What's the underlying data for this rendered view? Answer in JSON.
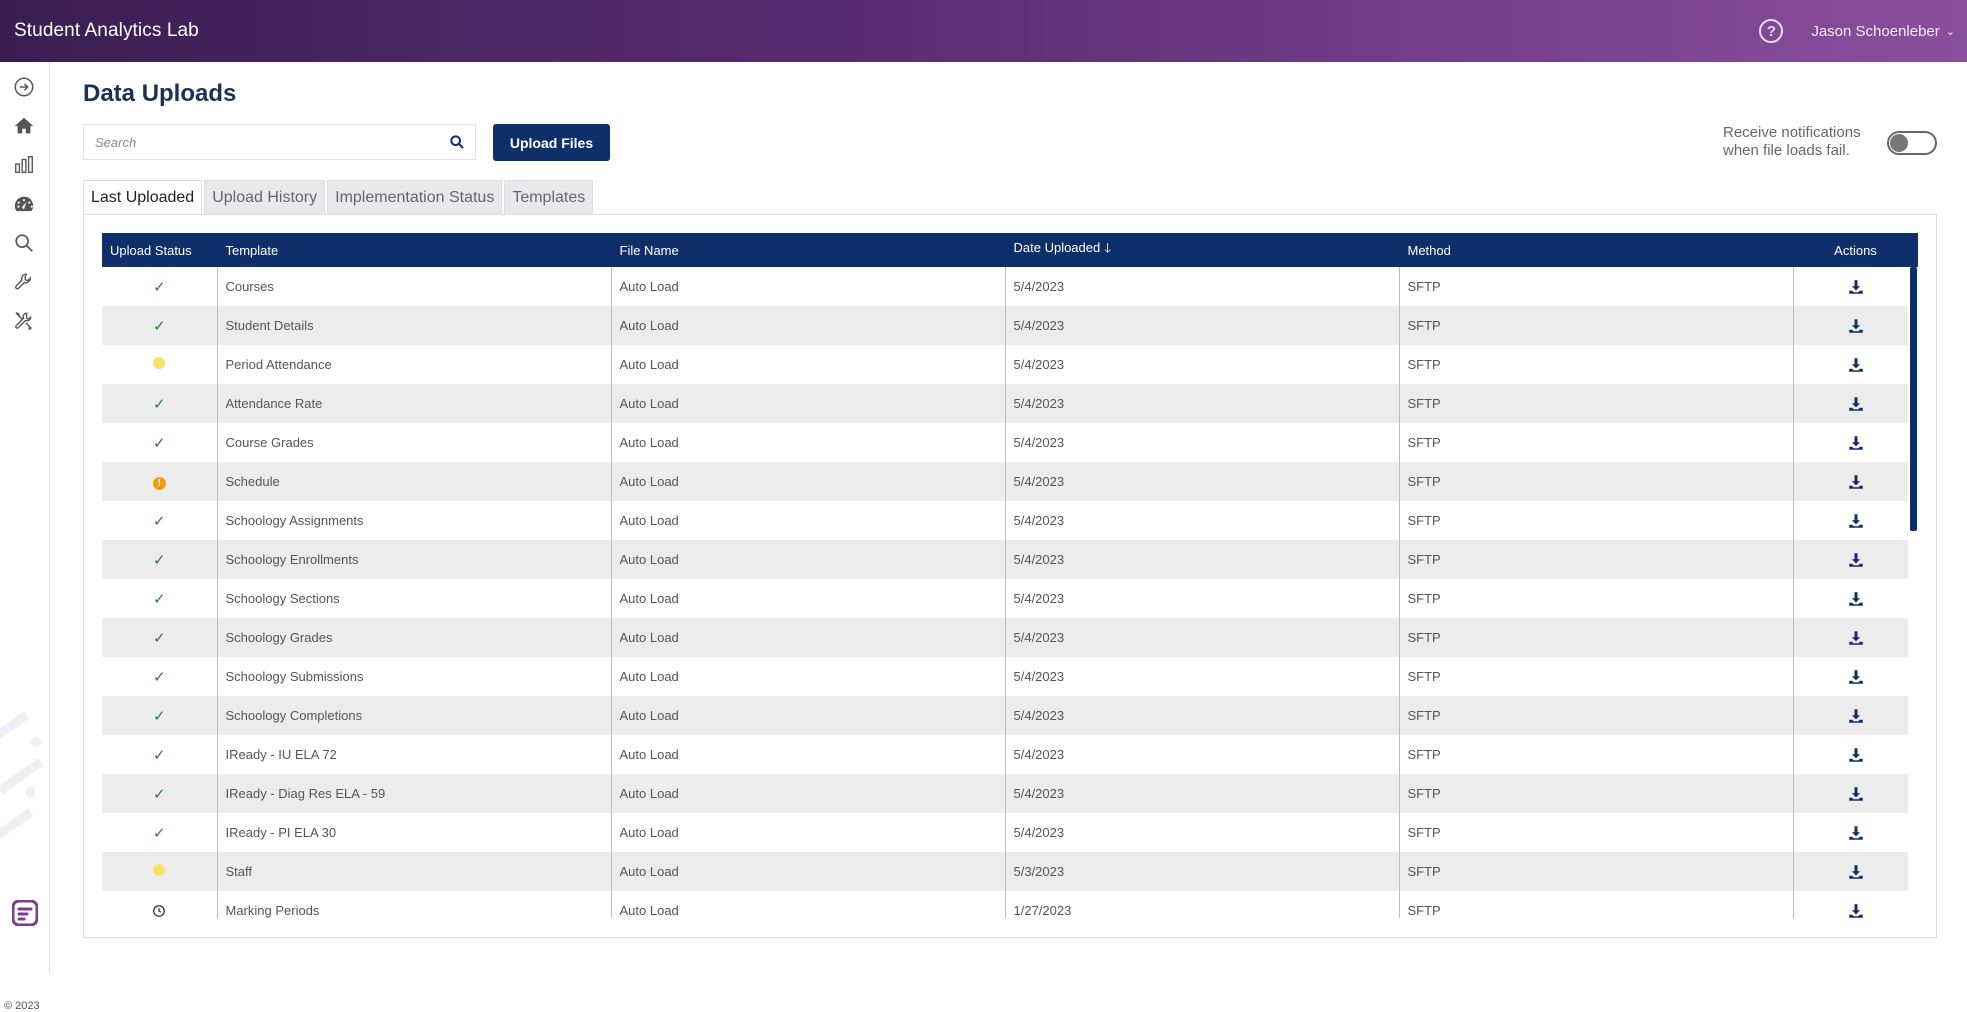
{
  "header": {
    "app_title": "Student Analytics Lab",
    "help_symbol": "?",
    "user_name": "Jason Schoenleber",
    "user_chevron": "⌄"
  },
  "sidebar": {
    "icons": [
      "arrow-right-circle-icon",
      "home-icon",
      "bar-chart-icon",
      "dashboard-gauge-icon",
      "search-icon",
      "wrench-icon",
      "tools-icon"
    ],
    "copyright": "© 2023"
  },
  "main": {
    "title": "Data Uploads",
    "search": {
      "placeholder": "Search",
      "value": ""
    },
    "upload_button": "Upload Files",
    "notifications": {
      "label_line1": "Receive notifications",
      "label_line2": "when file loads fail.",
      "enabled": false
    },
    "tabs": [
      {
        "label": "Last Uploaded",
        "active": true
      },
      {
        "label": "Upload History",
        "active": false
      },
      {
        "label": "Implementation Status",
        "active": false
      },
      {
        "label": "Templates",
        "active": false
      }
    ]
  },
  "table": {
    "columns": {
      "status": "Upload Status",
      "template": "Template",
      "file_name": "File Name",
      "date_uploaded": "Date Uploaded",
      "method": "Method",
      "actions": "Actions"
    },
    "sort_indicator": "🡓",
    "rows": [
      {
        "status": "success",
        "template": "Courses",
        "file_name": "Auto Load",
        "date": "5/4/2023",
        "method": "SFTP"
      },
      {
        "status": "success",
        "template": "Student Details",
        "file_name": "Auto Load",
        "date": "5/4/2023",
        "method": "SFTP"
      },
      {
        "status": "warning-yellow",
        "template": "Period Attendance",
        "file_name": "Auto Load",
        "date": "5/4/2023",
        "method": "SFTP"
      },
      {
        "status": "success",
        "template": "Attendance Rate",
        "file_name": "Auto Load",
        "date": "5/4/2023",
        "method": "SFTP"
      },
      {
        "status": "success",
        "template": "Course Grades",
        "file_name": "Auto Load",
        "date": "5/4/2023",
        "method": "SFTP"
      },
      {
        "status": "alert-orange",
        "template": "Schedule",
        "file_name": "Auto Load",
        "date": "5/4/2023",
        "method": "SFTP"
      },
      {
        "status": "success",
        "template": "Schoology Assignments",
        "file_name": "Auto Load",
        "date": "5/4/2023",
        "method": "SFTP"
      },
      {
        "status": "success",
        "template": "Schoology Enrollments",
        "file_name": "Auto Load",
        "date": "5/4/2023",
        "method": "SFTP"
      },
      {
        "status": "success",
        "template": "Schoology Sections",
        "file_name": "Auto Load",
        "date": "5/4/2023",
        "method": "SFTP"
      },
      {
        "status": "success",
        "template": "Schoology Grades",
        "file_name": "Auto Load",
        "date": "5/4/2023",
        "method": "SFTP"
      },
      {
        "status": "success",
        "template": "Schoology Submissions",
        "file_name": "Auto Load",
        "date": "5/4/2023",
        "method": "SFTP"
      },
      {
        "status": "success",
        "template": "Schoology Completions",
        "file_name": "Auto Load",
        "date": "5/4/2023",
        "method": "SFTP"
      },
      {
        "status": "success",
        "template": "IReady - IU ELA 72",
        "file_name": "Auto Load",
        "date": "5/4/2023",
        "method": "SFTP"
      },
      {
        "status": "success",
        "template": "IReady - Diag Res ELA - 59",
        "file_name": "Auto Load",
        "date": "5/4/2023",
        "method": "SFTP"
      },
      {
        "status": "success",
        "template": "IReady - PI ELA 30",
        "file_name": "Auto Load",
        "date": "5/4/2023",
        "method": "SFTP"
      },
      {
        "status": "warning-yellow",
        "template": "Staff",
        "file_name": "Auto Load",
        "date": "5/3/2023",
        "method": "SFTP"
      },
      {
        "status": "pending",
        "template": "Marking Periods",
        "file_name": "Auto Load",
        "date": "1/27/2023",
        "method": "SFTP"
      }
    ]
  },
  "colors": {
    "header_gradient_start": "#3a1e52",
    "header_gradient_end": "#8a4f9c",
    "primary_navy": "#0f2f6b",
    "success_green": "#2e7d32",
    "warning_yellow": "#f6e26a",
    "alert_orange": "#f39c12"
  }
}
